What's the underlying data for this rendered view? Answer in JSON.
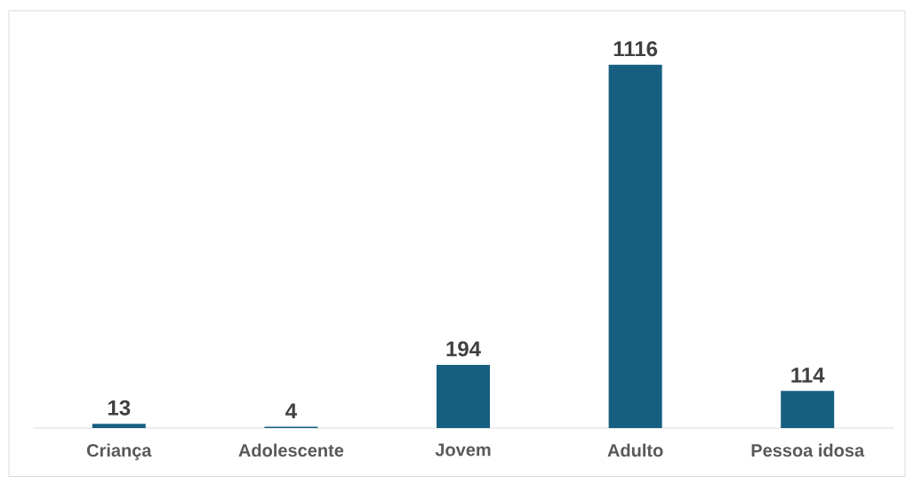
{
  "chart_data": {
    "type": "bar",
    "categories": [
      "Criança",
      "Adolescente",
      "Jovem",
      "Adulto",
      "Pessoa idosa"
    ],
    "values": [
      13,
      4,
      194,
      1116,
      114
    ],
    "color": "#175f80",
    "data_labels": true
  }
}
